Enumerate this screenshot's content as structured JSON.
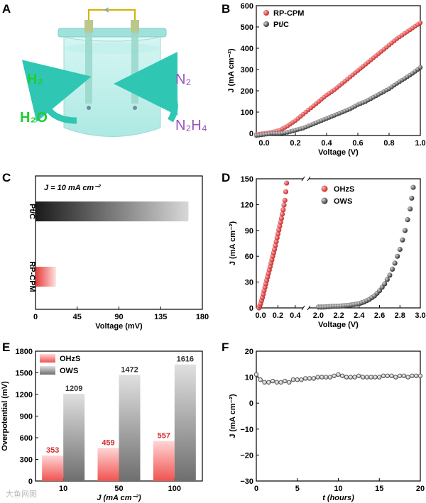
{
  "watermark": "大鱼网图",
  "panels": {
    "A": {
      "letter": "A",
      "h2": "H₂",
      "h2o": "H₂O",
      "n2": "N₂",
      "n2h4": "N₂H₄",
      "colors": {
        "green": "#22cc33",
        "purple": "#9955bb",
        "arrow": "#2fc7b4",
        "liquid": "#bff0ec"
      }
    }
  },
  "chart_data": [
    {
      "panel": "B",
      "type": "scatter",
      "xlabel": "Voltage (V)",
      "ylabel": "J (mA cm⁻²)",
      "xlim": [
        -0.05,
        1.0
      ],
      "ylim": [
        -10,
        600
      ],
      "xticks": [
        "0.0",
        "0.2",
        "0.4",
        "0.6",
        "0.8",
        "1.0"
      ],
      "xtickvals": [
        0,
        0.2,
        0.4,
        0.6,
        0.8,
        1.0
      ],
      "yticks": [
        "0",
        "100",
        "200",
        "300",
        "400",
        "500",
        "600"
      ],
      "ytickvals": [
        0,
        100,
        200,
        300,
        400,
        500,
        600
      ],
      "series": [
        {
          "name": "RP-CPM",
          "color": "#e53935",
          "x": [
            -0.05,
            0,
            0.05,
            0.1,
            0.15,
            0.2,
            0.25,
            0.3,
            0.35,
            0.4,
            0.45,
            0.5,
            0.55,
            0.6,
            0.65,
            0.7,
            0.75,
            0.8,
            0.85,
            0.9,
            0.95,
            1.0
          ],
          "y": [
            -5,
            0,
            5,
            15,
            35,
            60,
            90,
            120,
            150,
            180,
            205,
            235,
            265,
            295,
            325,
            355,
            385,
            415,
            445,
            470,
            495,
            520
          ]
        },
        {
          "name": "Pt/C",
          "color": "#444444",
          "x": [
            -0.05,
            0,
            0.05,
            0.1,
            0.15,
            0.2,
            0.25,
            0.3,
            0.35,
            0.4,
            0.45,
            0.5,
            0.55,
            0.6,
            0.65,
            0.7,
            0.75,
            0.8,
            0.85,
            0.9,
            0.95,
            1.0
          ],
          "y": [
            -10,
            -5,
            0,
            0,
            5,
            15,
            25,
            40,
            55,
            70,
            85,
            100,
            115,
            135,
            150,
            170,
            190,
            210,
            235,
            258,
            282,
            310
          ]
        }
      ]
    },
    {
      "panel": "C",
      "type": "bar",
      "annotation": "J = 10 mA cm⁻²",
      "xlabel": "Voltage (mV)",
      "xlim": [
        0,
        180
      ],
      "xticks": [
        "0",
        "45",
        "90",
        "135",
        "180"
      ],
      "xtickvals": [
        0,
        45,
        90,
        135,
        180
      ],
      "categories": [
        "Pt/C",
        "RP-CPM"
      ],
      "values": [
        165,
        22
      ],
      "colors": [
        "#333333",
        "#e53935"
      ]
    },
    {
      "panel": "D",
      "type": "scatter",
      "xlabel": "Voltage (V)",
      "ylabel": "J (mA cm⁻²)",
      "ylim": [
        0,
        150
      ],
      "yticks": [
        "0",
        "30",
        "60",
        "90",
        "120",
        "150"
      ],
      "ytickvals": [
        0,
        30,
        60,
        90,
        120,
        150
      ],
      "xticks": [
        "0.0",
        "0.2",
        "0.4",
        "2.0",
        "2.2",
        "2.4",
        "2.6",
        "2.8",
        "3.0"
      ],
      "series": [
        {
          "name": "OHzS",
          "color": "#e53935",
          "x": [
            -0.02,
            0,
            0.02,
            0.04,
            0.06,
            0.08,
            0.1,
            0.12,
            0.14,
            0.16,
            0.18,
            0.2,
            0.22,
            0.24,
            0.26,
            0.28,
            0.3
          ],
          "y": [
            0,
            5,
            12,
            20,
            28,
            36,
            44,
            52,
            60,
            68,
            77,
            86,
            95,
            104,
            114,
            125,
            145
          ]
        },
        {
          "name": "OWS",
          "color": "#444444",
          "x": [
            2.0,
            2.05,
            2.1,
            2.15,
            2.2,
            2.25,
            2.3,
            2.35,
            2.4,
            2.45,
            2.5,
            2.55,
            2.6,
            2.65,
            2.7,
            2.75,
            2.8,
            2.85,
            2.9,
            2.93
          ],
          "y": [
            1,
            1,
            1.5,
            2,
            2,
            2.5,
            3,
            4,
            5,
            7,
            10,
            14,
            20,
            28,
            38,
            52,
            68,
            90,
            115,
            140
          ]
        }
      ]
    },
    {
      "panel": "E",
      "type": "bar",
      "xlabel": "J (mA cm⁻²)",
      "ylabel": "Overpotential (mV)",
      "ylim": [
        0,
        1800
      ],
      "yticks": [
        "0",
        "300",
        "600",
        "900",
        "1200",
        "1500",
        "1800"
      ],
      "ytickvals": [
        0,
        300,
        600,
        900,
        1200,
        1500,
        1800
      ],
      "categories": [
        "10",
        "50",
        "100"
      ],
      "series": [
        {
          "name": "OHzS",
          "values": [
            353,
            459,
            557
          ],
          "labels": [
            "353",
            "459",
            "557"
          ],
          "color": "#e53935"
        },
        {
          "name": "OWS",
          "values": [
            1209,
            1472,
            1616
          ],
          "labels": [
            "1209",
            "1472",
            "1616"
          ],
          "color": "#666666"
        }
      ]
    },
    {
      "panel": "F",
      "type": "line",
      "xlabel": "t (hours)",
      "ylabel": "J (mA cm⁻²)",
      "xlim": [
        0,
        20
      ],
      "ylim": [
        -30,
        20
      ],
      "xticks": [
        "0",
        "5",
        "10",
        "15",
        "20"
      ],
      "xtickvals": [
        0,
        5,
        10,
        15,
        20
      ],
      "yticks": [
        "20",
        "10",
        "0",
        "−10",
        "−20",
        "−30"
      ],
      "ytickvals": [
        20,
        10,
        0,
        -10,
        -20,
        -30
      ],
      "x": [
        0,
        0.5,
        1,
        1.5,
        2,
        2.5,
        3,
        3.5,
        4,
        4.5,
        5,
        5.5,
        6,
        6.5,
        7,
        7.5,
        8,
        8.5,
        9,
        9.5,
        10,
        10.5,
        11,
        11.5,
        12,
        12.5,
        13,
        13.5,
        14,
        14.5,
        15,
        15.5,
        16,
        16.5,
        17,
        17.5,
        18,
        18.5,
        19,
        19.5,
        20
      ],
      "y": [
        11,
        9,
        8,
        8,
        8.5,
        8,
        8,
        8.5,
        8,
        9,
        9,
        9,
        9.5,
        9.5,
        9.5,
        10,
        10,
        10,
        10,
        10.5,
        11,
        10.5,
        10,
        10,
        10,
        10.5,
        10,
        10,
        10,
        10,
        10,
        10.5,
        10.5,
        10.5,
        10,
        10.5,
        10.5,
        10,
        10.5,
        10.5,
        10.5
      ],
      "color": "#444444"
    }
  ]
}
